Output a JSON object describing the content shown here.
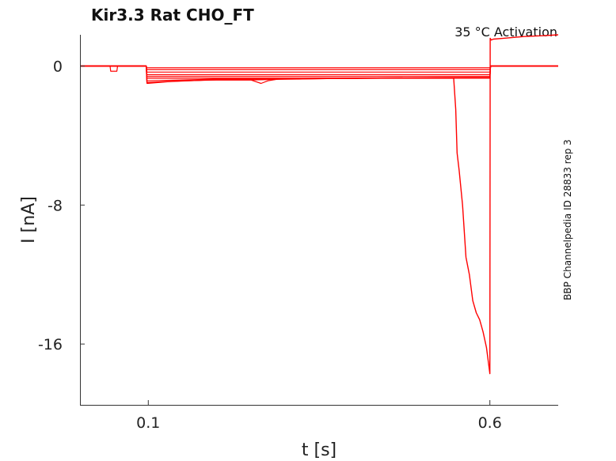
{
  "chart_data": {
    "type": "line",
    "title": "Kir3.3  Rat  CHO_FT",
    "subtitle": "35 °C  Activation",
    "side_label": "BBP Channelpedia ID 28833 rep 3",
    "xlabel": "t [s]",
    "ylabel": "I [nA]",
    "xlim": [
      0.0,
      0.7
    ],
    "ylim": [
      -19.5,
      1.8
    ],
    "x_ticks": [
      0.1,
      0.6
    ],
    "x_tick_labels": [
      "0.1",
      "0.6"
    ],
    "y_ticks": [
      0,
      -8,
      -16
    ],
    "y_tick_labels": [
      "0",
      "-8",
      "-16"
    ],
    "grid": false,
    "line_color": "#ff0000",
    "series": [
      {
        "x": [
          0.0,
          0.044,
          0.045,
          0.054,
          0.055,
          0.097,
          0.098,
          0.6,
          0.601,
          0.7
        ],
        "y": [
          0,
          0,
          -0.3,
          -0.3,
          0,
          0,
          -0.1,
          -0.1,
          0,
          0
        ]
      },
      {
        "x": [
          0.0,
          0.097,
          0.098,
          0.6,
          0.601,
          0.7
        ],
        "y": [
          0,
          0,
          -0.2,
          -0.2,
          0,
          0
        ]
      },
      {
        "x": [
          0.0,
          0.097,
          0.098,
          0.6,
          0.601,
          0.7
        ],
        "y": [
          0,
          0,
          -0.35,
          -0.35,
          0,
          0
        ]
      },
      {
        "x": [
          0.0,
          0.097,
          0.098,
          0.6,
          0.601,
          0.7
        ],
        "y": [
          0,
          0,
          -0.5,
          -0.5,
          0,
          0
        ]
      },
      {
        "x": [
          0.0,
          0.097,
          0.098,
          0.6,
          0.601,
          0.7
        ],
        "y": [
          0,
          0,
          -0.6,
          -0.6,
          0,
          0
        ]
      },
      {
        "x": [
          0.0,
          0.097,
          0.098,
          0.6,
          0.601,
          0.7
        ],
        "y": [
          0,
          0,
          -0.7,
          -0.7,
          0,
          0
        ]
      },
      {
        "x": [
          0.0,
          0.097,
          0.098,
          0.15,
          0.2,
          0.25,
          0.3,
          0.35,
          0.4,
          0.45,
          0.5,
          0.55,
          0.6,
          0.601,
          0.7
        ],
        "y": [
          0,
          0,
          -0.85,
          -0.8,
          -0.75,
          -0.75,
          -0.72,
          -0.7,
          -0.7,
          -0.68,
          -0.67,
          -0.66,
          -0.65,
          0,
          0
        ]
      },
      {
        "x": [
          0.0,
          0.097,
          0.098,
          0.13,
          0.16,
          0.19,
          0.22,
          0.25,
          0.265,
          0.275,
          0.29,
          0.32,
          0.36,
          0.4,
          0.44,
          0.48,
          0.52,
          0.56,
          0.6,
          0.601,
          0.7
        ],
        "y": [
          0,
          0,
          -1.0,
          -0.9,
          -0.85,
          -0.8,
          -0.8,
          -0.8,
          -1.0,
          -0.85,
          -0.75,
          -0.75,
          -0.72,
          -0.72,
          -0.7,
          -0.7,
          -0.68,
          -0.68,
          -0.67,
          0,
          0
        ]
      },
      {
        "x": [
          0.0,
          0.097,
          0.098,
          0.15,
          0.2,
          0.25,
          0.3,
          0.35,
          0.4,
          0.45,
          0.5,
          0.54,
          0.547,
          0.55,
          0.552,
          0.555,
          0.56,
          0.565,
          0.57,
          0.575,
          0.58,
          0.585,
          0.59,
          0.595,
          0.6,
          0.6005,
          0.602,
          0.605,
          0.62,
          0.65,
          0.68,
          0.7
        ],
        "y": [
          0,
          0,
          -0.95,
          -0.85,
          -0.8,
          -0.8,
          -0.75,
          -0.72,
          -0.7,
          -0.7,
          -0.7,
          -0.7,
          -0.7,
          -2.5,
          -5.0,
          -6.0,
          -8.0,
          -11.0,
          -12.0,
          -13.5,
          -14.2,
          -14.6,
          -15.3,
          -16.2,
          -17.7,
          1.6,
          1.5,
          1.55,
          1.6,
          1.7,
          1.75,
          1.8
        ]
      }
    ]
  }
}
